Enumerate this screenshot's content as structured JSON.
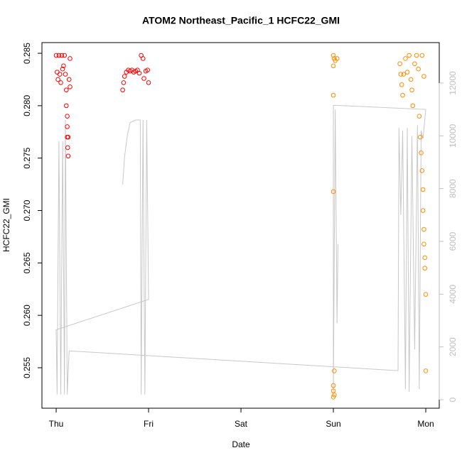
{
  "chart_data": {
    "type": "scatter",
    "title": "ATOM2 Northeast_Pacific_1 HCFC22_GMI",
    "x_label": "Date",
    "y_label": "HCFC22_GMI",
    "xlim": [
      -0.154,
      4.146
    ],
    "xticks": [
      {
        "value": 0,
        "label": "Thu"
      },
      {
        "value": 1,
        "label": "Fri"
      },
      {
        "value": 2,
        "label": "Sat"
      },
      {
        "value": 3,
        "label": "Sun"
      },
      {
        "value": 4,
        "label": "Mon"
      }
    ],
    "ylim": [
      0.25114,
      0.28602
    ],
    "yticks": [
      0.255,
      {
        "value": 0.26,
        "label": "0.260"
      },
      0.265,
      {
        "value": 0.27,
        "label": "0.270"
      },
      0.275,
      {
        "value": 0.28,
        "label": "0.280"
      },
      0.285
    ],
    "y2lim": [
      -323,
      13534
    ],
    "y2ticks": [
      0,
      2000,
      4000,
      6000,
      8000,
      10000,
      12000
    ],
    "y2_color": "#bfbfbf",
    "series": [
      {
        "type": "scatter",
        "color": "#ff0000",
        "x": [
          0.0,
          0.01,
          0.02,
          0.03,
          0.04,
          0.05,
          0.06,
          0.07,
          0.08,
          0.09,
          0.1,
          0.11,
          0.11,
          0.12,
          0.12,
          0.12,
          0.125,
          0.13,
          0.13,
          0.14,
          0.15,
          0.15,
          0.72,
          0.73,
          0.74,
          0.76,
          0.78,
          0.8,
          0.82,
          0.84,
          0.86,
          0.88,
          0.9,
          0.92,
          0.94,
          0.95,
          0.97,
          0.99,
          1.0
        ],
        "values": [
          0.2848,
          0.2832,
          0.2825,
          0.2848,
          0.283,
          0.2822,
          0.2848,
          0.2835,
          0.2838,
          0.2848,
          0.283,
          0.2815,
          0.28,
          0.279,
          0.278,
          0.277,
          0.276,
          0.2752,
          0.277,
          0.2825,
          0.2845,
          0.2818,
          0.2815,
          0.2822,
          0.2828,
          0.2832,
          0.2834,
          0.2833,
          0.2834,
          0.2832,
          0.2833,
          0.2834,
          0.2831,
          0.2848,
          0.2845,
          0.2826,
          0.2833,
          0.2834,
          0.2822
        ]
      },
      {
        "type": "scatter",
        "color": "#ff8c00",
        "x": [
          3.0,
          3.0,
          3.01,
          3.02,
          3.04,
          3.0,
          3.0,
          3.01,
          3.0,
          3.0,
          3.01,
          3.0,
          3.72,
          3.73,
          3.74,
          3.75,
          3.76,
          3.78,
          3.8,
          3.82,
          3.84,
          3.85,
          3.86,
          3.88,
          3.9,
          3.92,
          3.93,
          3.94,
          3.95,
          3.96,
          3.97,
          3.97,
          3.98,
          3.98,
          3.99,
          3.99,
          4.0,
          4.0,
          3.96,
          3.98
        ],
        "values": [
          0.2848,
          0.2838,
          0.2845,
          0.2843,
          0.2845,
          0.281,
          0.2718,
          0.2547,
          0.2533,
          0.2528,
          0.2524,
          0.2522,
          0.284,
          0.283,
          0.282,
          0.281,
          0.283,
          0.2845,
          0.2832,
          0.2848,
          0.2825,
          0.2815,
          0.28,
          0.284,
          0.2848,
          0.2835,
          0.279,
          0.277,
          0.2755,
          0.2738,
          0.272,
          0.27,
          0.2682,
          0.2668,
          0.2655,
          0.2645,
          0.262,
          0.2547,
          0.2848,
          0.2828
        ]
      },
      {
        "type": "line",
        "axis": "y2",
        "color": "#c8c8c8",
        "x": [
          0.72,
          0.74,
          0.77,
          0.8,
          0.86,
          0.91,
          0.92,
          0.94,
          0.96,
          0.98,
          1.0,
          0.0,
          0.01,
          0.03,
          0.05,
          0.07,
          0.09,
          0.1,
          0.12,
          0.14,
          3.7,
          3.71,
          3.73,
          3.75,
          3.78,
          3.8,
          3.82,
          3.85,
          3.88,
          3.91,
          3.93,
          3.95,
          3.97,
          4.0,
          3.0,
          3.0,
          3.02,
          3.04,
          3.05
        ],
        "values": [
          8150,
          9200,
          10000,
          10500,
          10600,
          10600,
          200,
          10600,
          200,
          10600,
          3800,
          2650,
          200,
          9800,
          200,
          9800,
          200,
          10600,
          200,
          1850,
          1100,
          10300,
          7000,
          10200,
          400,
          10300,
          300,
          10000,
          1900,
          10400,
          400,
          10200,
          9900,
          11000,
          11160,
          200,
          11000,
          2900,
          5900
        ]
      }
    ]
  }
}
